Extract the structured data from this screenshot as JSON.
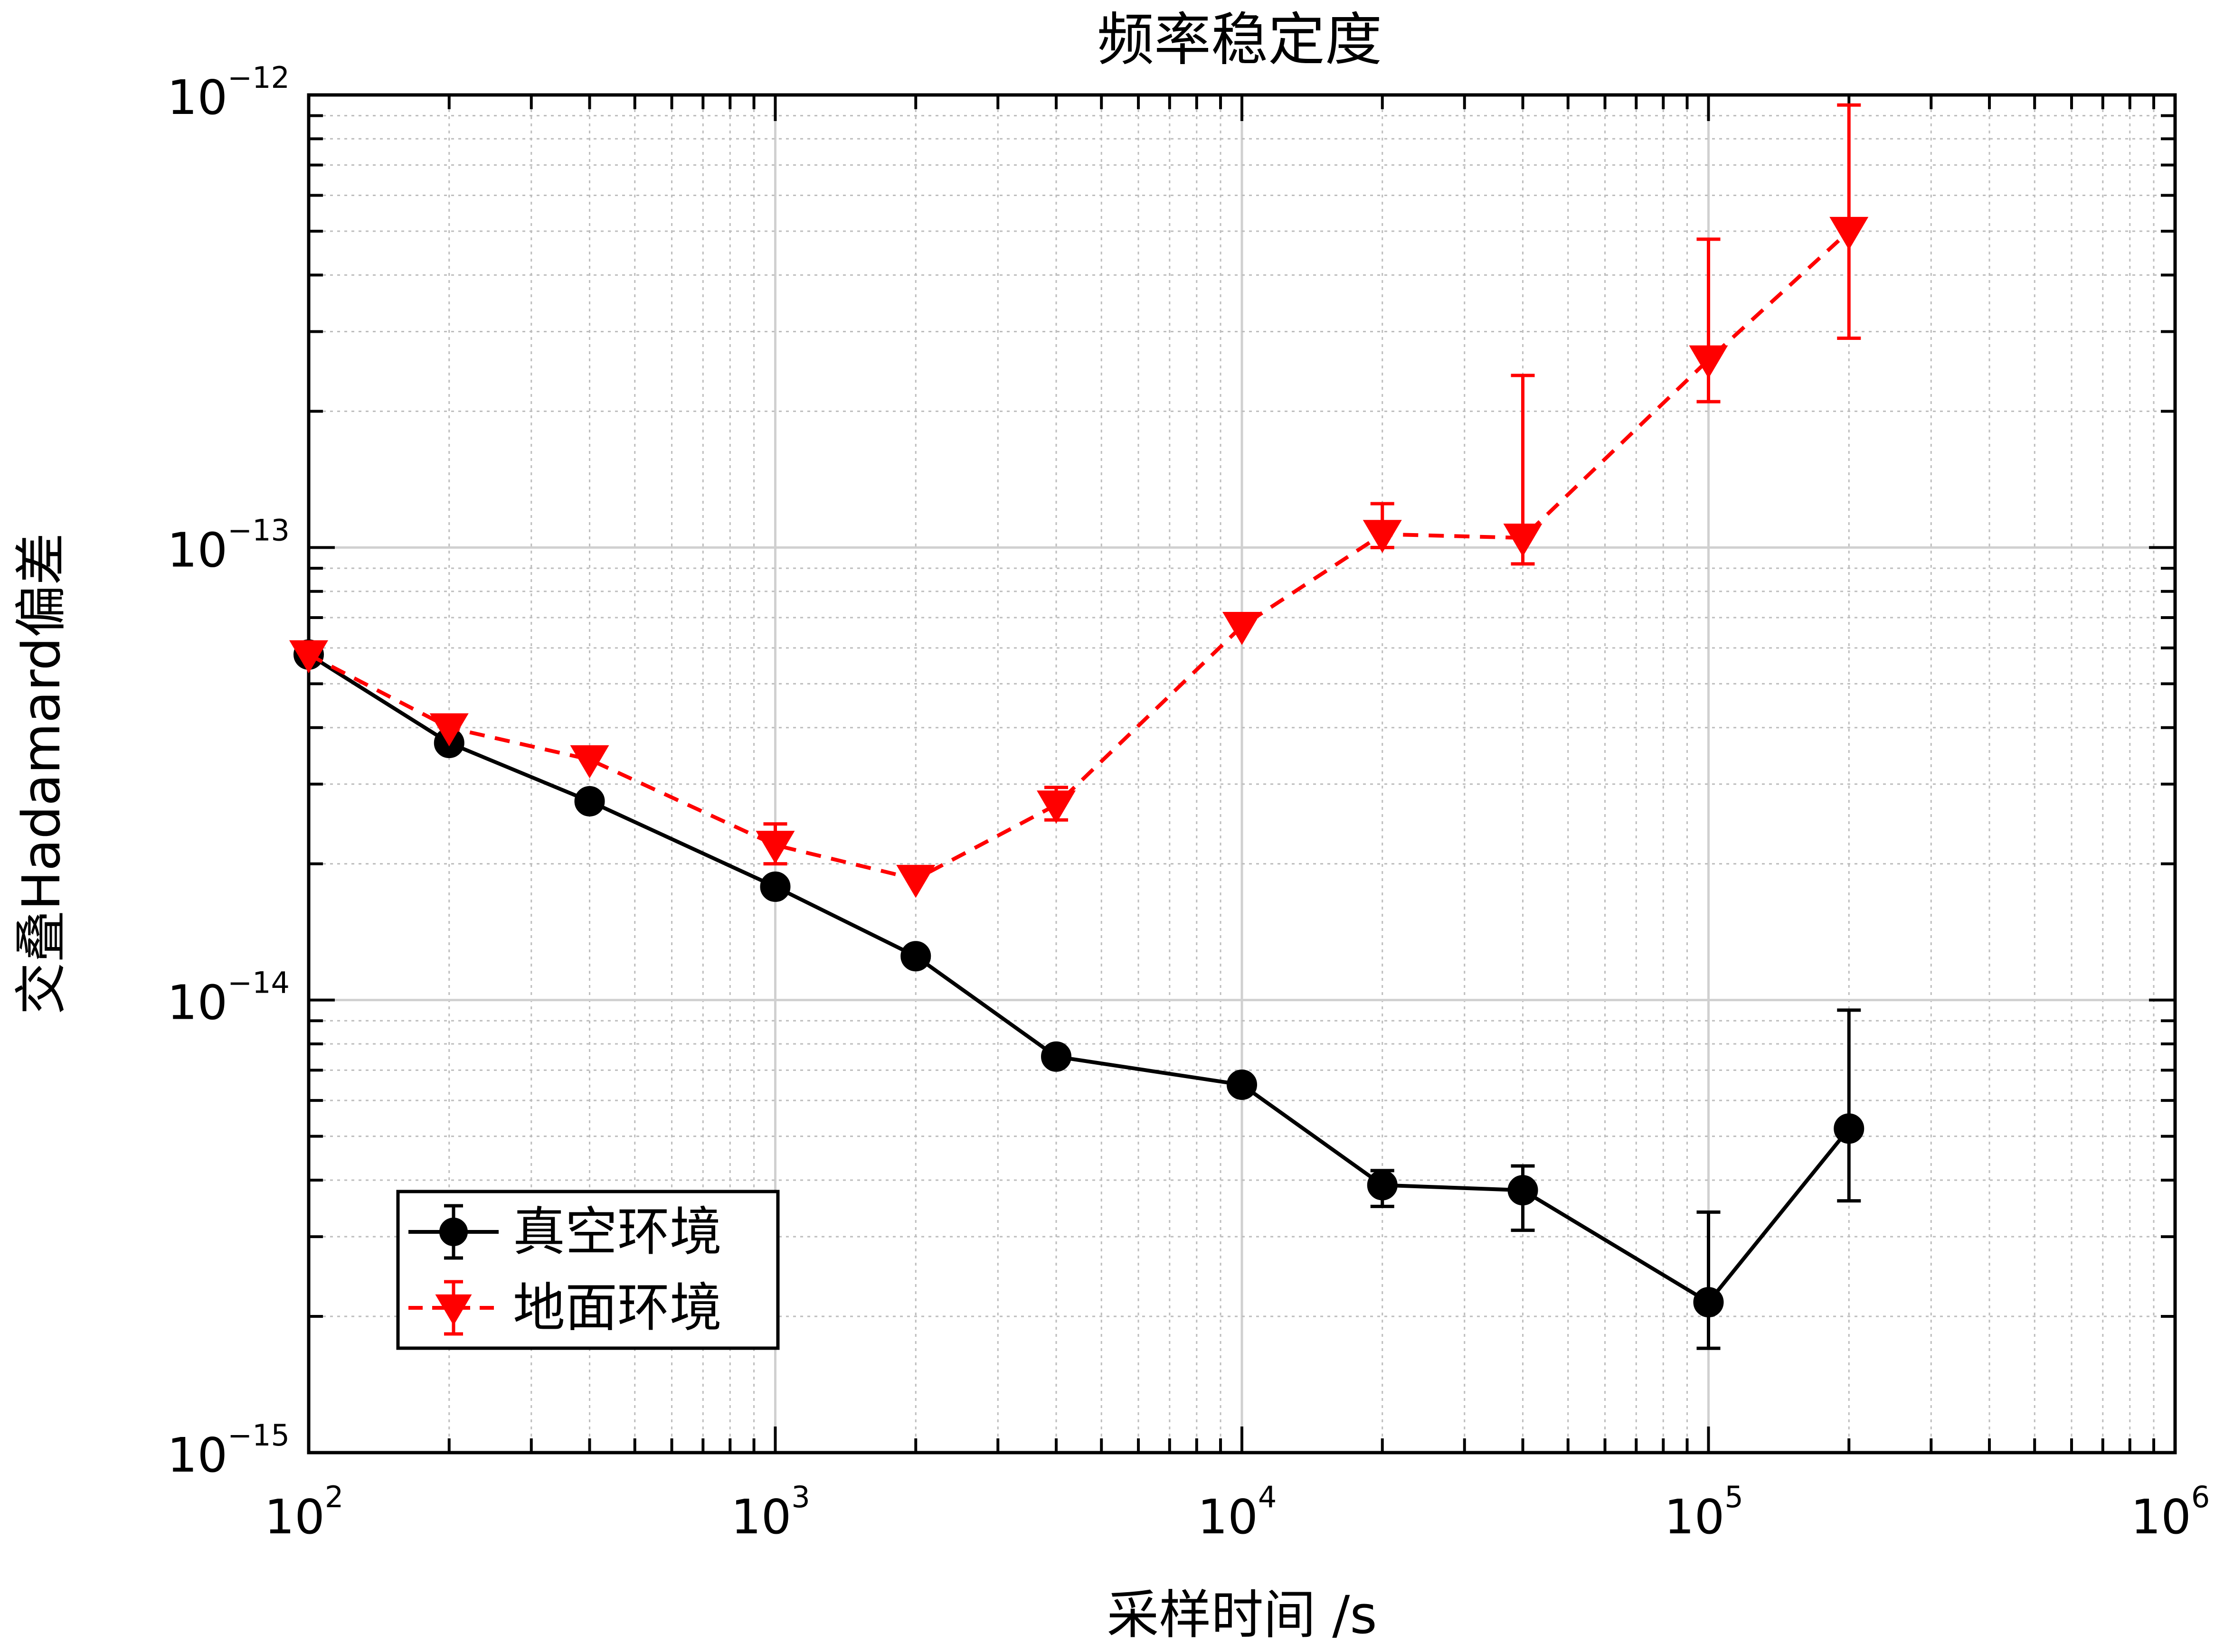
{
  "chart_data": {
    "type": "line",
    "title": "频率稳定度",
    "xlabel": "采样时间 /s",
    "ylabel": "交叠Hadamard偏差",
    "xscale": "log",
    "yscale": "log",
    "xlim": [
      100,
      1000000
    ],
    "ylim": [
      1e-15,
      1e-12
    ],
    "x_ticks": [
      {
        "base": "10",
        "exp": "2"
      },
      {
        "base": "10",
        "exp": "3"
      },
      {
        "base": "10",
        "exp": "4"
      },
      {
        "base": "10",
        "exp": "5"
      },
      {
        "base": "10",
        "exp": "6"
      }
    ],
    "y_ticks": [
      {
        "base": "10",
        "exp": "−15"
      },
      {
        "base": "10",
        "exp": "−14"
      },
      {
        "base": "10",
        "exp": "−13"
      },
      {
        "base": "10",
        "exp": "−12"
      }
    ],
    "grid": true,
    "legend_position": "bottom-left",
    "series": [
      {
        "name": "真空环境",
        "color": "#000000",
        "line_style": "solid",
        "marker": "circle",
        "x": [
          100,
          200,
          400,
          1000,
          2000,
          4000,
          10000,
          20000,
          40000,
          100000,
          200000
        ],
        "y": [
          5.8e-14,
          3.7e-14,
          2.75e-14,
          1.78e-14,
          1.25e-14,
          7.5e-15,
          6.5e-15,
          3.9e-15,
          3.8e-15,
          2.15e-15,
          5.2e-15
        ],
        "err_low": [
          5.8e-14,
          3.7e-14,
          2.75e-14,
          1.78e-14,
          1.25e-14,
          7.5e-15,
          6.5e-15,
          3.5e-15,
          3.1e-15,
          1.7e-15,
          3.6e-15
        ],
        "err_high": [
          5.8e-14,
          3.7e-14,
          2.75e-14,
          1.78e-14,
          1.25e-14,
          7.5e-15,
          6.5e-15,
          4.2e-15,
          4.3e-15,
          3.4e-15,
          9.5e-15
        ]
      },
      {
        "name": "地面环境",
        "color": "#ff0000",
        "line_style": "dashed",
        "marker": "triangle-down",
        "x": [
          100,
          200,
          400,
          1000,
          2000,
          4000,
          10000,
          20000,
          40000,
          100000,
          200000
        ],
        "y": [
          5.8e-14,
          4e-14,
          3.4e-14,
          2.2e-14,
          1.85e-14,
          2.7e-14,
          6.7e-14,
          1.07e-13,
          1.05e-13,
          2.6e-13,
          5e-13
        ],
        "err_low": [
          5.8e-14,
          4e-14,
          3.4e-14,
          2e-14,
          1.85e-14,
          2.5e-14,
          6.7e-14,
          1e-13,
          9.2e-14,
          2.1e-13,
          2.9e-13
        ],
        "err_high": [
          5.8e-14,
          4e-14,
          3.4e-14,
          2.45e-14,
          1.85e-14,
          2.95e-14,
          6.7e-14,
          1.25e-13,
          2.4e-13,
          4.8e-13,
          9.5e-13
        ]
      }
    ]
  }
}
